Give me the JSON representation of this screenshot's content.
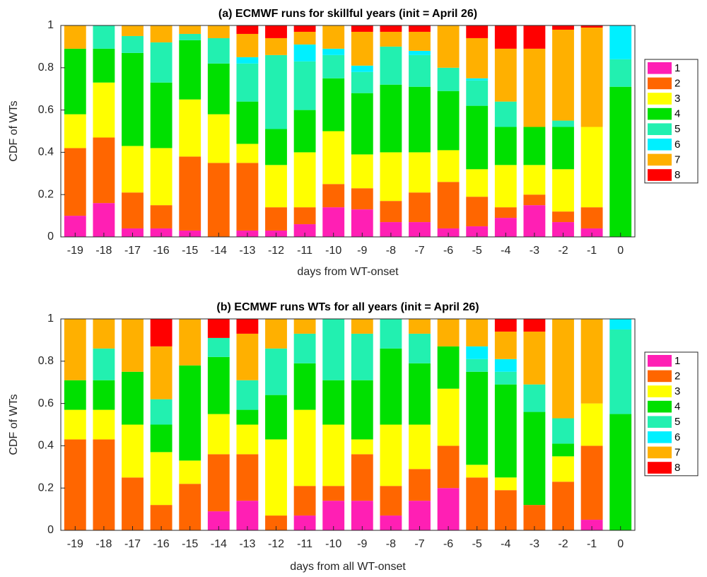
{
  "chart_data": [
    {
      "type": "bar",
      "stacked": true,
      "title": "(a) ECMWF runs for skillful years (init = April 26)",
      "xlabel": "days from WT-onset",
      "ylabel": "CDF of WTs",
      "categories": [
        "-19",
        "-18",
        "-17",
        "-16",
        "-15",
        "-14",
        "-13",
        "-12",
        "-11",
        "-10",
        "-9",
        "-8",
        "-7",
        "-6",
        "-5",
        "-4",
        "-3",
        "-2",
        "-1",
        "0"
      ],
      "ylim": [
        0,
        1
      ],
      "yticks": [
        0,
        0.2,
        0.4,
        0.6,
        0.8,
        1
      ],
      "legend": "right",
      "series": [
        {
          "name": "1",
          "color": "#ff1fb4",
          "values": [
            0.1,
            0.16,
            0.04,
            0.04,
            0.03,
            0,
            0.03,
            0.03,
            0.06,
            0.14,
            0.13,
            0.07,
            0.07,
            0.04,
            0.05,
            0.09,
            0.15,
            0.07,
            0.04,
            0
          ]
        },
        {
          "name": "2",
          "color": "#ff6600",
          "values": [
            0.32,
            0.31,
            0.17,
            0.11,
            0.35,
            0.35,
            0.32,
            0.11,
            0.08,
            0.11,
            0.1,
            0.1,
            0.14,
            0.22,
            0.14,
            0.05,
            0.05,
            0.05,
            0.1,
            0
          ]
        },
        {
          "name": "3",
          "color": "#ffff00",
          "values": [
            0.16,
            0.26,
            0.22,
            0.27,
            0.27,
            0.23,
            0.09,
            0.2,
            0.26,
            0.25,
            0.16,
            0.23,
            0.19,
            0.15,
            0.13,
            0.2,
            0.14,
            0.2,
            0.38,
            0
          ]
        },
        {
          "name": "4",
          "color": "#00e000",
          "values": [
            0.31,
            0.16,
            0.44,
            0.31,
            0.28,
            0.24,
            0.2,
            0.17,
            0.2,
            0.25,
            0.29,
            0.32,
            0.31,
            0.28,
            0.3,
            0.18,
            0.18,
            0.2,
            0,
            0.71
          ]
        },
        {
          "name": "5",
          "color": "#22f0b0",
          "values": [
            0,
            0.11,
            0.08,
            0.19,
            0.03,
            0.12,
            0.18,
            0.35,
            0.23,
            0.11,
            0.1,
            0.18,
            0.15,
            0.11,
            0.12,
            0.12,
            0,
            0.03,
            0,
            0.13
          ]
        },
        {
          "name": "6",
          "color": "#00f0ff",
          "values": [
            0,
            0,
            0,
            0,
            0,
            0,
            0.03,
            0,
            0.08,
            0.03,
            0.03,
            0,
            0.02,
            0,
            0.01,
            0,
            0,
            0,
            0,
            0.16
          ]
        },
        {
          "name": "7",
          "color": "#ffb000",
          "values": [
            0.11,
            0,
            0.05,
            0.08,
            0.04,
            0.06,
            0.11,
            0.08,
            0.06,
            0.11,
            0.16,
            0.07,
            0.09,
            0.2,
            0.19,
            0.25,
            0.37,
            0.43,
            0.47,
            0
          ]
        },
        {
          "name": "8",
          "color": "#ff0000",
          "values": [
            0,
            0,
            0,
            0,
            0,
            0,
            0.04,
            0.06,
            0.03,
            0,
            0.03,
            0.03,
            0.03,
            0,
            0.06,
            0.11,
            0.11,
            0.02,
            0.01,
            0
          ]
        }
      ]
    },
    {
      "type": "bar",
      "stacked": true,
      "title": "(b) ECMWF runs WTs for all years (init = April 26)",
      "xlabel": "days from all WT-onset",
      "ylabel": "CDF of WTs",
      "categories": [
        "-19",
        "-18",
        "-17",
        "-16",
        "-15",
        "-14",
        "-13",
        "-12",
        "-11",
        "-10",
        "-9",
        "-8",
        "-7",
        "-6",
        "-5",
        "-4",
        "-3",
        "-2",
        "-1",
        "0"
      ],
      "ylim": [
        0,
        1
      ],
      "yticks": [
        0,
        0.2,
        0.4,
        0.6,
        0.8,
        1
      ],
      "legend": "right",
      "series": [
        {
          "name": "1",
          "color": "#ff1fb4",
          "values": [
            0,
            0,
            0,
            0,
            0,
            0.09,
            0.14,
            0,
            0.07,
            0.14,
            0.14,
            0.07,
            0.14,
            0.2,
            0,
            0,
            0,
            0,
            0.05,
            0
          ]
        },
        {
          "name": "2",
          "color": "#ff6600",
          "values": [
            0.43,
            0.43,
            0.25,
            0.12,
            0.22,
            0.27,
            0.22,
            0.07,
            0.14,
            0.07,
            0.22,
            0.14,
            0.15,
            0.2,
            0.25,
            0.19,
            0.12,
            0.23,
            0.35,
            0
          ]
        },
        {
          "name": "3",
          "color": "#ffff00",
          "values": [
            0.14,
            0.14,
            0.25,
            0.25,
            0.11,
            0.19,
            0.14,
            0.36,
            0.36,
            0.29,
            0.07,
            0.29,
            0.21,
            0.27,
            0.06,
            0.06,
            0,
            0.12,
            0.2,
            0
          ]
        },
        {
          "name": "4",
          "color": "#00e000",
          "values": [
            0.14,
            0.14,
            0.25,
            0.13,
            0.45,
            0.27,
            0.07,
            0.21,
            0.22,
            0.21,
            0.28,
            0.36,
            0.29,
            0.2,
            0.44,
            0.44,
            0.44,
            0.06,
            0,
            0.55
          ]
        },
        {
          "name": "5",
          "color": "#22f0b0",
          "values": [
            0,
            0.15,
            0,
            0.12,
            0,
            0.09,
            0.14,
            0.22,
            0.14,
            0.29,
            0.22,
            0.14,
            0.14,
            0,
            0.06,
            0.06,
            0.13,
            0.12,
            0,
            0.4
          ]
        },
        {
          "name": "6",
          "color": "#00f0ff",
          "values": [
            0,
            0,
            0,
            0,
            0,
            0,
            0,
            0,
            0,
            0,
            0,
            0,
            0,
            0,
            0.06,
            0.06,
            0,
            0,
            0,
            0.05
          ]
        },
        {
          "name": "7",
          "color": "#ffb000",
          "values": [
            0.29,
            0.14,
            0.25,
            0.25,
            0.22,
            0,
            0.22,
            0.14,
            0.07,
            0,
            0.07,
            0,
            0.07,
            0.13,
            0.13,
            0.13,
            0.25,
            0.47,
            0.4,
            0
          ]
        },
        {
          "name": "8",
          "color": "#ff0000",
          "values": [
            0,
            0,
            0,
            0.13,
            0,
            0.09,
            0.07,
            0,
            0,
            0,
            0,
            0,
            0,
            0,
            0,
            0.06,
            0.06,
            0,
            0,
            0
          ]
        }
      ]
    }
  ]
}
